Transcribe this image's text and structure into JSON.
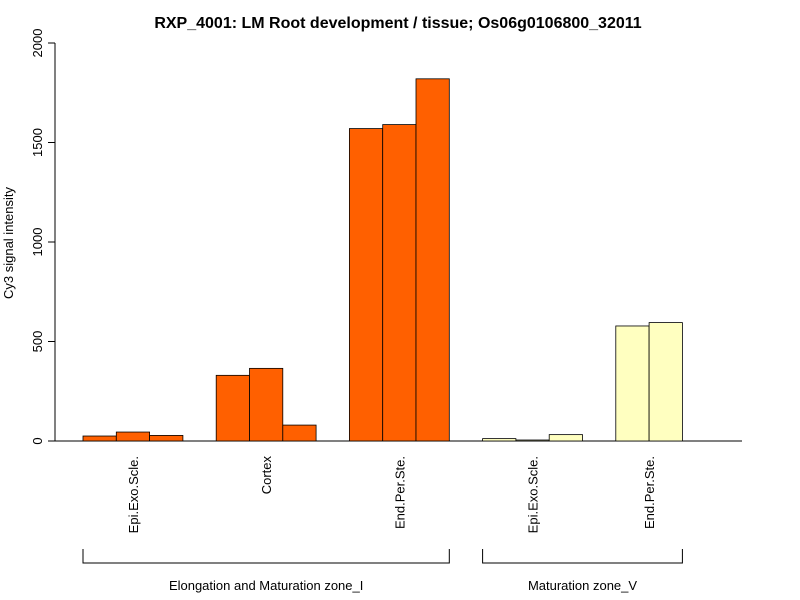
{
  "chart_data": {
    "type": "bar",
    "title": "RXP_4001: LM Root development / tissue; Os06g0106800_32011",
    "xlabel": "",
    "ylabel": "Cy3 signal intensity",
    "ylim": [
      0,
      2000
    ],
    "yticks": [
      0,
      500,
      1000,
      1500,
      2000
    ],
    "grid": false,
    "groups": [
      {
        "label": "Elongation and Maturation zone_I",
        "categories": [
          {
            "label": "Epi.Exo.Scle.",
            "values": [
              25,
              45,
              28
            ],
            "color": "#FF6000"
          },
          {
            "label": "Cortex",
            "values": [
              330,
              365,
              80
            ],
            "color": "#FF6000"
          },
          {
            "label": "End.Per.Ste.",
            "values": [
              1570,
              1590,
              1820
            ],
            "color": "#FF6000"
          }
        ]
      },
      {
        "label": "Maturation zone_V",
        "categories": [
          {
            "label": "Epi.Exo.Scle.",
            "values": [
              12,
              5,
              32
            ],
            "color": "#FFFFC0"
          },
          {
            "label": "End.Per.Ste.",
            "values": [
              578,
              595
            ],
            "color": "#FFFFC0"
          }
        ]
      }
    ]
  }
}
